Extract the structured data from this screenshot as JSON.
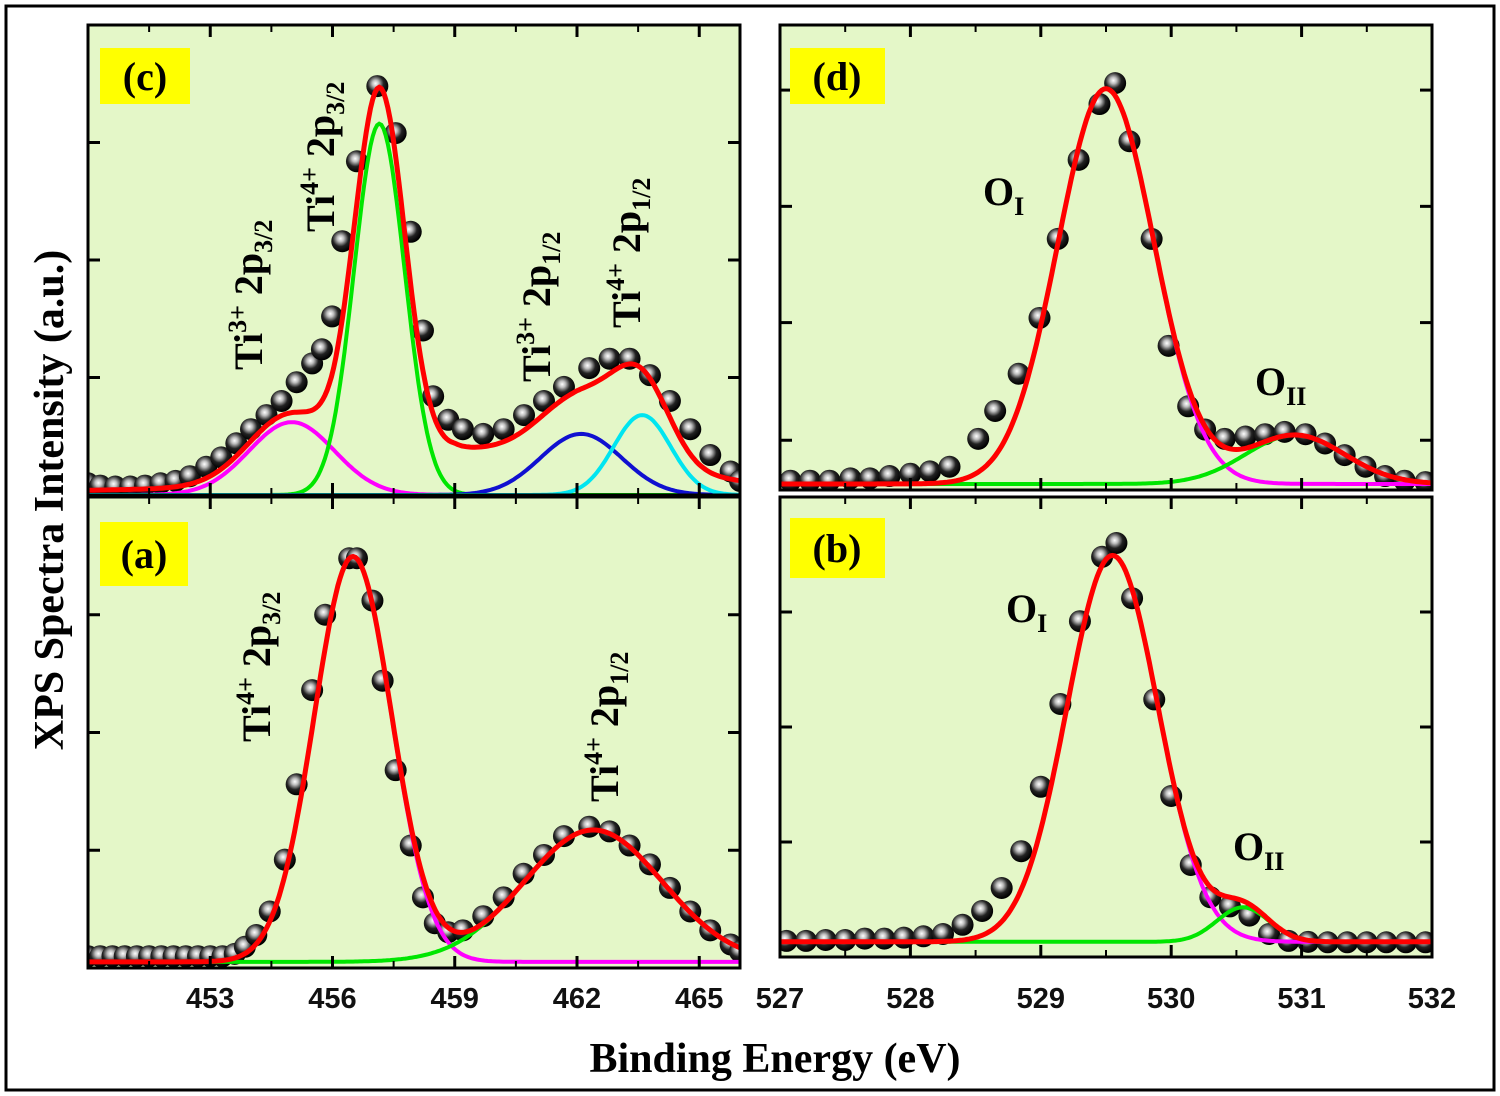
{
  "chart_data": {
    "type": "line",
    "xlabel": "Binding Energy (eV)",
    "ylabel": "XPS Spectra Intensity (a.u.)",
    "colors": {
      "panel_bg": "#e4f7c8",
      "tag_bg": "#ffff00",
      "envelope": "#ff0000",
      "frame": "#000000"
    },
    "panels": [
      {
        "id": "c",
        "tag": "(c)",
        "xlim": [
          450,
          466
        ],
        "ylim": [
          0,
          1
        ],
        "x_ticks": [
          453,
          456,
          459,
          462,
          465
        ],
        "x_minor": [
          451.5,
          454.5,
          457.5,
          460.5,
          463.5
        ],
        "y_ticks": [
          0.25,
          0.5,
          0.75
        ],
        "baseline": 0,
        "background": [
          [
            450,
            0.01
          ],
          [
            456,
            0.02
          ],
          [
            457.5,
            0.07
          ],
          [
            459,
            0.1
          ],
          [
            462,
            0.08
          ],
          [
            464,
            0.05
          ],
          [
            466,
            0.03
          ]
        ],
        "components": [
          {
            "name": "Ti3+ 2p3/2",
            "color": "#ff00ff",
            "center": 455.0,
            "sigma": 1.05,
            "height": 0.155
          },
          {
            "name": "Ti4+ 2p3/2",
            "color": "#00e600",
            "center": 457.15,
            "sigma": 0.62,
            "height": 0.79
          },
          {
            "name": "Ti3+ 2p1/2",
            "color": "#1010d0",
            "center": 462.1,
            "sigma": 1.0,
            "height": 0.13
          },
          {
            "name": "Ti4+ 2p1/2",
            "color": "#00e5f0",
            "center": 463.6,
            "sigma": 0.7,
            "height": 0.17
          }
        ],
        "points": [
          [
            450.0,
            0.025
          ],
          [
            450.3,
            0.02
          ],
          [
            450.67,
            0.018
          ],
          [
            451.04,
            0.018
          ],
          [
            451.4,
            0.02
          ],
          [
            451.78,
            0.025
          ],
          [
            452.15,
            0.03
          ],
          [
            452.5,
            0.04
          ],
          [
            452.9,
            0.06
          ],
          [
            453.27,
            0.08
          ],
          [
            453.64,
            0.11
          ],
          [
            454.0,
            0.14
          ],
          [
            454.38,
            0.17
          ],
          [
            454.75,
            0.2
          ],
          [
            455.12,
            0.24
          ],
          [
            455.5,
            0.28
          ],
          [
            455.74,
            0.31
          ],
          [
            455.99,
            0.38
          ],
          [
            456.24,
            0.54
          ],
          [
            456.6,
            0.71
          ],
          [
            457.1,
            0.87
          ],
          [
            457.55,
            0.77
          ],
          [
            457.92,
            0.56
          ],
          [
            458.22,
            0.35
          ],
          [
            458.47,
            0.21
          ],
          [
            458.84,
            0.16
          ],
          [
            459.2,
            0.14
          ],
          [
            459.7,
            0.13
          ],
          [
            460.2,
            0.14
          ],
          [
            460.7,
            0.17
          ],
          [
            461.19,
            0.2
          ],
          [
            461.68,
            0.23
          ],
          [
            462.3,
            0.27
          ],
          [
            462.8,
            0.29
          ],
          [
            463.29,
            0.29
          ],
          [
            463.79,
            0.255
          ],
          [
            464.28,
            0.2
          ],
          [
            464.78,
            0.14
          ],
          [
            465.27,
            0.085
          ],
          [
            465.77,
            0.05
          ],
          [
            466.0,
            0.03
          ]
        ]
      },
      {
        "id": "a",
        "tag": "(a)",
        "xlim": [
          450,
          466
        ],
        "ylim": [
          0,
          1
        ],
        "x_ticks": [
          453,
          456,
          459,
          462,
          465
        ],
        "x_minor": [
          451.5,
          454.5,
          457.5,
          460.5,
          463.5
        ],
        "y_ticks": [
          0.25,
          0.5,
          0.75
        ],
        "baseline": 0.013,
        "background": [],
        "components": [
          {
            "name": "Ti4+ 2p3/2",
            "color": "#ff00ff",
            "center": 456.5,
            "sigma": 0.95,
            "height": 0.86
          },
          {
            "name": "Ti4+ 2p1/2",
            "color": "#00e600",
            "center": 462.4,
            "sigma": 1.7,
            "height": 0.28
          }
        ],
        "points": [
          [
            450.0,
            0.025
          ],
          [
            450.3,
            0.025
          ],
          [
            450.6,
            0.025
          ],
          [
            450.9,
            0.025
          ],
          [
            451.2,
            0.025
          ],
          [
            451.5,
            0.025
          ],
          [
            451.8,
            0.025
          ],
          [
            452.1,
            0.025
          ],
          [
            452.4,
            0.025
          ],
          [
            452.7,
            0.025
          ],
          [
            453.0,
            0.025
          ],
          [
            453.3,
            0.025
          ],
          [
            453.6,
            0.03
          ],
          [
            453.85,
            0.045
          ],
          [
            454.13,
            0.07
          ],
          [
            454.46,
            0.12
          ],
          [
            454.83,
            0.23
          ],
          [
            455.12,
            0.39
          ],
          [
            455.5,
            0.59
          ],
          [
            455.82,
            0.75
          ],
          [
            456.41,
            0.87
          ],
          [
            456.6,
            0.87
          ],
          [
            456.98,
            0.78
          ],
          [
            457.23,
            0.61
          ],
          [
            457.55,
            0.42
          ],
          [
            457.92,
            0.26
          ],
          [
            458.22,
            0.15
          ],
          [
            458.51,
            0.095
          ],
          [
            458.84,
            0.076
          ],
          [
            459.2,
            0.08
          ],
          [
            459.7,
            0.11
          ],
          [
            460.2,
            0.15
          ],
          [
            460.69,
            0.2
          ],
          [
            461.19,
            0.24
          ],
          [
            461.68,
            0.28
          ],
          [
            462.3,
            0.3
          ],
          [
            462.8,
            0.29
          ],
          [
            463.29,
            0.26
          ],
          [
            463.79,
            0.22
          ],
          [
            464.28,
            0.17
          ],
          [
            464.78,
            0.12
          ],
          [
            465.27,
            0.08
          ],
          [
            465.77,
            0.05
          ],
          [
            466.0,
            0.035
          ]
        ]
      },
      {
        "id": "d",
        "tag": "(d)",
        "xlim": [
          527,
          532
        ],
        "ylim": [
          0,
          1
        ],
        "x_ticks": [
          527,
          528,
          529,
          530,
          531,
          532
        ],
        "x_minor": [
          527.5,
          528.5,
          529.5,
          530.5,
          531.5
        ],
        "y_ticks": [
          0.107,
          0.36,
          0.61,
          0.86
        ],
        "baseline": 0.013,
        "background": [],
        "components": [
          {
            "name": "OI",
            "color": "#ff00ff",
            "center": 529.5,
            "sigma": 0.37,
            "height": 0.85
          },
          {
            "name": "OII",
            "color": "#00e600",
            "center": 530.95,
            "sigma": 0.38,
            "height": 0.105
          }
        ],
        "points": [
          [
            527.08,
            0.02
          ],
          [
            527.23,
            0.02
          ],
          [
            527.38,
            0.02
          ],
          [
            527.54,
            0.025
          ],
          [
            527.69,
            0.025
          ],
          [
            527.84,
            0.03
          ],
          [
            528.0,
            0.035
          ],
          [
            528.15,
            0.04
          ],
          [
            528.3,
            0.05
          ],
          [
            528.52,
            0.11
          ],
          [
            528.65,
            0.17
          ],
          [
            528.83,
            0.25
          ],
          [
            528.99,
            0.37
          ],
          [
            529.13,
            0.54
          ],
          [
            529.29,
            0.71
          ],
          [
            529.45,
            0.83
          ],
          [
            529.57,
            0.875
          ],
          [
            529.68,
            0.75
          ],
          [
            529.85,
            0.54
          ],
          [
            529.98,
            0.31
          ],
          [
            530.13,
            0.18
          ],
          [
            530.26,
            0.13
          ],
          [
            530.41,
            0.11
          ],
          [
            530.57,
            0.115
          ],
          [
            530.72,
            0.12
          ],
          [
            530.87,
            0.125
          ],
          [
            531.03,
            0.12
          ],
          [
            531.18,
            0.1
          ],
          [
            531.33,
            0.075
          ],
          [
            531.49,
            0.05
          ],
          [
            531.64,
            0.03
          ],
          [
            531.79,
            0.02
          ],
          [
            531.95,
            0.017
          ]
        ]
      },
      {
        "id": "b",
        "tag": "(b)",
        "xlim": [
          527,
          532
        ],
        "ylim": [
          0,
          1
        ],
        "x_ticks": [
          527,
          528,
          529,
          530,
          531,
          532
        ],
        "x_minor": [
          527.5,
          528.5,
          529.5,
          530.5,
          531.5
        ],
        "y_ticks": [
          0.25,
          0.5,
          0.75
        ],
        "baseline": 0.033,
        "background": [],
        "components": [
          {
            "name": "OI",
            "color": "#ff00ff",
            "center": 529.55,
            "sigma": 0.35,
            "height": 0.84
          },
          {
            "name": "OII",
            "color": "#00e600",
            "center": 530.55,
            "sigma": 0.2,
            "height": 0.075
          }
        ],
        "points": [
          [
            527.05,
            0.035
          ],
          [
            527.2,
            0.035
          ],
          [
            527.35,
            0.037
          ],
          [
            527.5,
            0.037
          ],
          [
            527.65,
            0.04
          ],
          [
            527.8,
            0.04
          ],
          [
            527.95,
            0.042
          ],
          [
            528.1,
            0.045
          ],
          [
            528.25,
            0.05
          ],
          [
            528.4,
            0.07
          ],
          [
            528.55,
            0.1
          ],
          [
            528.7,
            0.15
          ],
          [
            528.85,
            0.23
          ],
          [
            529.0,
            0.37
          ],
          [
            529.15,
            0.55
          ],
          [
            529.3,
            0.73
          ],
          [
            529.47,
            0.87
          ],
          [
            529.58,
            0.9
          ],
          [
            529.7,
            0.78
          ],
          [
            529.87,
            0.56
          ],
          [
            530.0,
            0.35
          ],
          [
            530.15,
            0.2
          ],
          [
            530.3,
            0.13
          ],
          [
            530.45,
            0.11
          ],
          [
            530.6,
            0.09
          ],
          [
            530.75,
            0.05
          ],
          [
            530.9,
            0.035
          ],
          [
            531.05,
            0.033
          ],
          [
            531.2,
            0.032
          ],
          [
            531.35,
            0.032
          ],
          [
            531.5,
            0.032
          ],
          [
            531.65,
            0.032
          ],
          [
            531.8,
            0.032
          ],
          [
            531.95,
            0.032
          ]
        ]
      }
    ],
    "annotations": {
      "c": [
        {
          "base": "Ti",
          "sup": "3+",
          "main": " 2p",
          "sub": "3/2"
        },
        {
          "base": "Ti",
          "sup": "4+",
          "main": " 2p",
          "sub": "3/2"
        },
        {
          "base": "Ti",
          "sup": "3+",
          "main": " 2p",
          "sub": "1/2"
        },
        {
          "base": "Ti",
          "sup": "4+",
          "main": " 2p",
          "sub": "1/2"
        }
      ],
      "a": [
        {
          "base": "Ti",
          "sup": "4+",
          "main": " 2p",
          "sub": "3/2"
        },
        {
          "base": "Ti",
          "sup": "4+",
          "main": " 2p",
          "sub": "1/2"
        }
      ],
      "d": [
        {
          "base": "O",
          "sub": "I"
        },
        {
          "base": "O",
          "sub": "II"
        }
      ],
      "b": [
        {
          "base": "O",
          "sub": "I"
        },
        {
          "base": "O",
          "sub": "II"
        }
      ]
    }
  }
}
